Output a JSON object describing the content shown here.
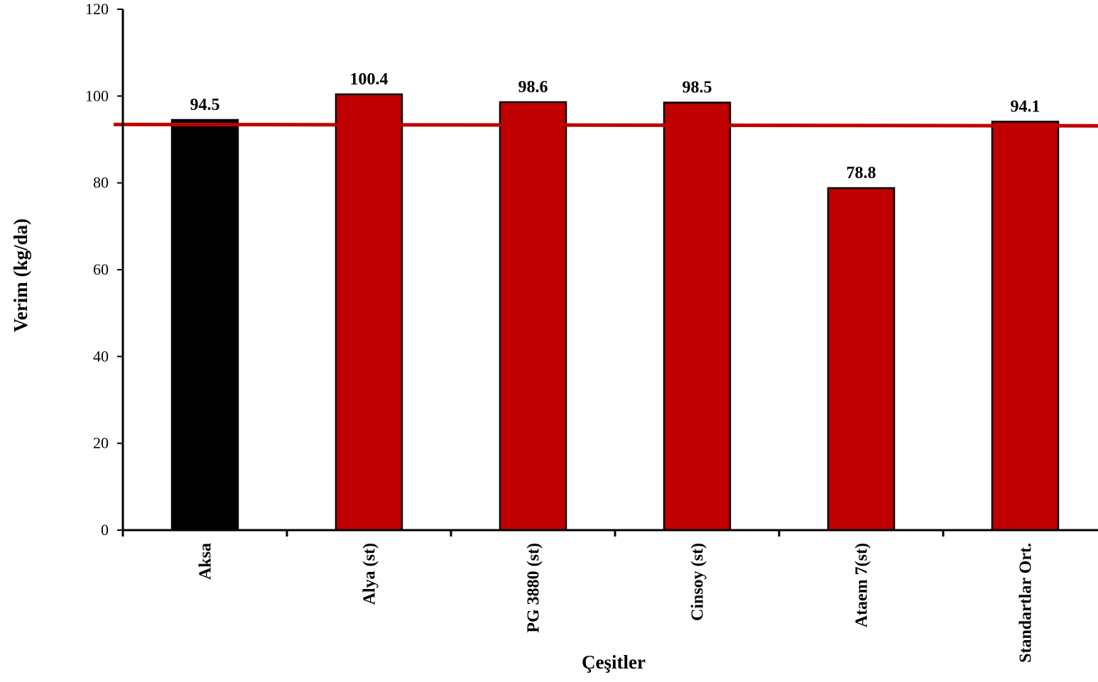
{
  "chart_data": {
    "type": "bar",
    "title": "",
    "xlabel": "Çeşitler",
    "ylabel": "Verim (kg/da)",
    "categories": [
      "Aksa",
      "Alya (st)",
      "PG 3880 (st)",
      "Cinsoy (st)",
      "Ataem 7(st)",
      "Standartlar Ort."
    ],
    "values": [
      94.5,
      100.4,
      98.6,
      98.5,
      78.8,
      94.1
    ],
    "value_labels": [
      "94.5",
      "100.4",
      "98.6",
      "98.5",
      "78.8",
      "94.1"
    ],
    "bar_colors": [
      "#000000",
      "#c00000",
      "#c00000",
      "#c00000",
      "#c00000",
      "#c00000"
    ],
    "ylim": [
      0,
      120
    ],
    "yticks": [
      0,
      20,
      40,
      60,
      80,
      100,
      120
    ],
    "ytick_labels": [
      "0",
      "20",
      "40",
      "60",
      "80",
      "100",
      "120"
    ],
    "reference_line": {
      "value": 93.3,
      "color": "#c00000"
    },
    "grid": false,
    "legend": "none"
  }
}
